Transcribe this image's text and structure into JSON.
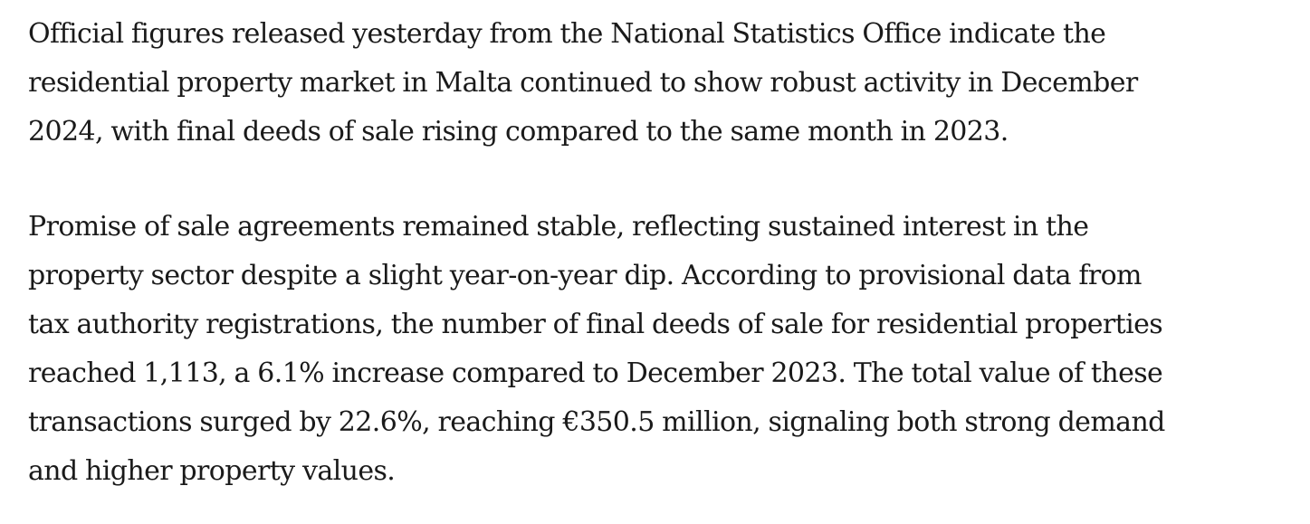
{
  "article": {
    "paragraphs": [
      {
        "lines": [
          "Official figures released yesterday from the National Statistics Office indicate the",
          "residential property market in Malta continued to show robust activity in December",
          "2024, with final deeds of sale rising compared to the same month in 2023."
        ]
      },
      {
        "lines": [
          "Promise of sale agreements remained stable, reflecting sustained interest in the",
          "property sector despite a slight year-on-year dip. According to provisional data from",
          "tax authority registrations, the number of final deeds of sale for residential properties",
          "reached 1,113, a 6.1% increase compared to December 2023. The total value of these",
          "transactions surged by 22.6%, reaching €350.5 million, signaling both strong demand",
          "and higher property values."
        ]
      }
    ]
  }
}
